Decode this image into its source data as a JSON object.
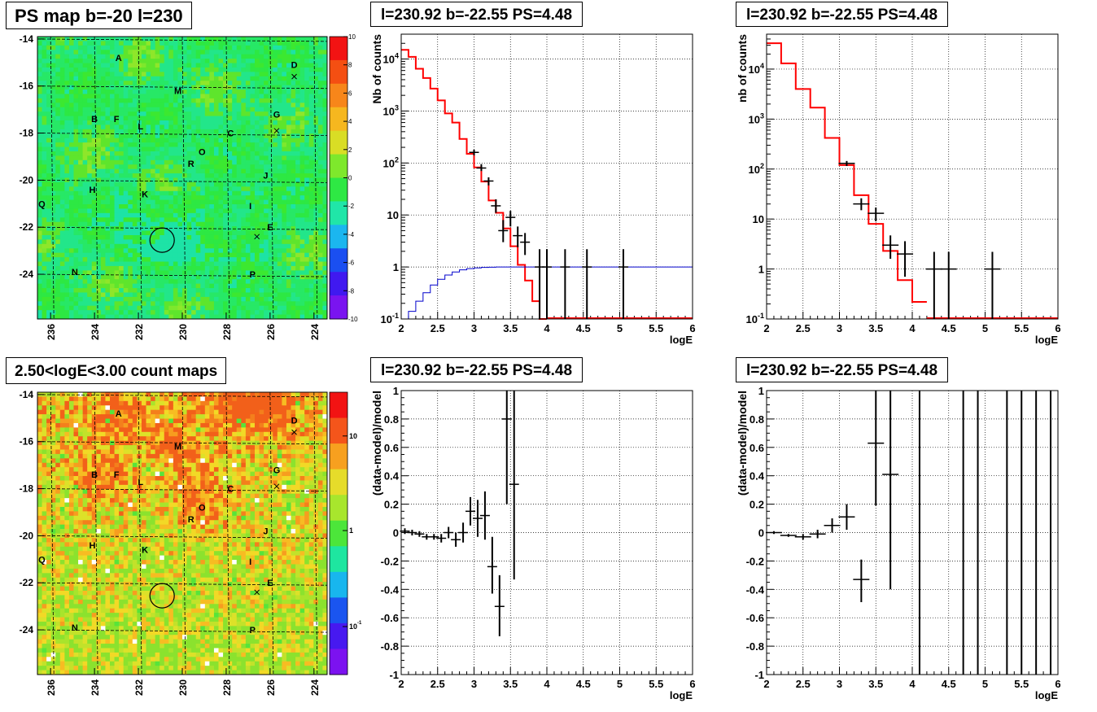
{
  "titles": {
    "ps_map": "PS map b=-20 l=230",
    "count_map": "2.50<logE<3.00 count maps",
    "spectrum_a": "l=230.92 b=-22.55 PS=4.48",
    "spectrum_b": "l=230.92 b=-22.55 PS=4.48",
    "resid_a": "l=230.92 b=-22.55 PS=4.48",
    "resid_b": "l=230.92 b=-22.55 PS=4.48"
  },
  "maps": {
    "x_ticks": [
      "236",
      "234",
      "232",
      "230",
      "228",
      "226",
      "224"
    ],
    "y_ticks": [
      "-14",
      "-16",
      "-18",
      "-20",
      "-22",
      "-24"
    ],
    "sources": [
      {
        "label": "A",
        "l": 232.9,
        "b": -14.8
      },
      {
        "label": "D",
        "l": 224.9,
        "b": -15.1
      },
      {
        "label": "M",
        "l": 230.2,
        "b": -16.2
      },
      {
        "label": "B",
        "l": 234.0,
        "b": -17.4
      },
      {
        "label": "F",
        "l": 233.0,
        "b": -17.4
      },
      {
        "label": "L",
        "l": 231.9,
        "b": -17.7
      },
      {
        "label": "G",
        "l": 225.7,
        "b": -17.2
      },
      {
        "label": "C",
        "l": 227.8,
        "b": -18.0
      },
      {
        "label": "O",
        "l": 229.1,
        "b": -18.8
      },
      {
        "label": "R",
        "l": 229.6,
        "b": -19.3
      },
      {
        "label": "J",
        "l": 226.2,
        "b": -19.8
      },
      {
        "label": "H",
        "l": 234.1,
        "b": -20.4
      },
      {
        "label": "K",
        "l": 231.7,
        "b": -20.6
      },
      {
        "label": "Q",
        "l": 236.4,
        "b": -21.0
      },
      {
        "label": "I",
        "l": 226.9,
        "b": -21.1
      },
      {
        "label": "E",
        "l": 226.0,
        "b": -22.0
      },
      {
        "label": "N",
        "l": 234.9,
        "b": -23.9
      },
      {
        "label": "P",
        "l": 226.8,
        "b": -24.0
      }
    ],
    "crosses": [
      {
        "l": 224.9,
        "b": -15.6
      },
      {
        "l": 225.7,
        "b": -17.9
      },
      {
        "l": 226.6,
        "b": -22.4
      }
    ],
    "circle": {
      "l": 230.92,
      "b": -22.55
    }
  },
  "ps_colorbar": {
    "ticks": [
      "10",
      "8",
      "6",
      "4",
      "2",
      "0",
      "-2",
      "-4",
      "-6",
      "-8",
      "-10"
    ],
    "colors": [
      "#f21313",
      "#f44f12",
      "#f7861a",
      "#f6b71f",
      "#d9dd25",
      "#7ee82c",
      "#2ee844",
      "#20e6a8",
      "#1bb6ef",
      "#1a4ff1",
      "#4019f0",
      "#7a14f0"
    ]
  },
  "count_colorbar": {
    "ticks": [
      "10",
      "1",
      "10-1"
    ],
    "colors": [
      "#f21313",
      "#f4551b",
      "#f7a01f",
      "#e6dc2a",
      "#a8e62d",
      "#4ce63a",
      "#1ee6a0",
      "#18b6ee",
      "#1a55f0",
      "#4719f0",
      "#7c12f0"
    ]
  },
  "chart_data": [
    {
      "type": "line",
      "title": "l=230.92 b=-22.55 PS=4.48",
      "xlabel": "logE",
      "ylabel": "Nb of counts",
      "xlim": [
        2,
        6
      ],
      "ylim": [
        0.1,
        30000
      ],
      "yscale": "log",
      "grid": true,
      "x_ticks": [
        "2",
        "2.5",
        "3",
        "3.5",
        "4",
        "4.5",
        "5",
        "5.5",
        "6"
      ],
      "y_ticks": [
        "10-1",
        "1",
        "10",
        "102",
        "103",
        "104"
      ],
      "series": [
        {
          "name": "",
          "color": "#ff0000",
          "kind": "step",
          "edges": [
            2.0,
            2.1,
            2.2,
            2.3,
            2.4,
            2.5,
            2.6,
            2.7,
            2.8,
            2.9,
            3.0,
            3.1,
            3.2,
            3.3,
            3.4,
            3.5,
            3.6,
            3.7,
            3.8,
            3.9,
            4.0
          ],
          "values": [
            15000,
            11000,
            6500,
            4300,
            2700,
            1600,
            900,
            600,
            290,
            150,
            82,
            44,
            19,
            11,
            5.5,
            2.5,
            1.1,
            0.55,
            0.22,
            0.1
          ]
        },
        {
          "name": "",
          "color": "#0000cc",
          "kind": "step",
          "edges": [
            2.0,
            2.1,
            2.2,
            2.3,
            2.4,
            2.5,
            2.6,
            2.7,
            2.8,
            2.9,
            3.0,
            3.1,
            3.2,
            3.3,
            3.4,
            3.5,
            6.0
          ],
          "values": [
            0.1,
            0.14,
            0.22,
            0.32,
            0.45,
            0.58,
            0.7,
            0.8,
            0.88,
            0.93,
            0.96,
            0.98,
            0.99,
            1.0,
            1.0,
            1.0
          ]
        },
        {
          "name": "",
          "color": "#000000",
          "kind": "errorbars",
          "points": [
            {
              "x": 3.0,
              "y": 160,
              "lo": 140,
              "hi": 180
            },
            {
              "x": 3.1,
              "y": 80,
              "lo": 70,
              "hi": 95
            },
            {
              "x": 3.2,
              "y": 45,
              "lo": 37,
              "hi": 53
            },
            {
              "x": 3.3,
              "y": 15,
              "lo": 11,
              "hi": 20
            },
            {
              "x": 3.4,
              "y": 5,
              "lo": 3,
              "hi": 8
            },
            {
              "x": 3.5,
              "y": 9,
              "lo": 6,
              "hi": 12
            },
            {
              "x": 3.6,
              "y": 4,
              "lo": 2.4,
              "hi": 6
            },
            {
              "x": 3.7,
              "y": 3,
              "lo": 1.7,
              "hi": 4.5
            },
            {
              "x": 3.9,
              "y": 1,
              "lo": 0.1,
              "hi": 2.2
            },
            {
              "x": 4.0,
              "y": 1,
              "lo": 0.1,
              "hi": 2.2
            },
            {
              "x": 4.25,
              "y": 1,
              "lo": 0.1,
              "hi": 2.2
            },
            {
              "x": 4.55,
              "y": 1,
              "lo": 0.1,
              "hi": 2.2
            },
            {
              "x": 5.05,
              "y": 1,
              "lo": 0.1,
              "hi": 2.2
            }
          ]
        }
      ]
    },
    {
      "type": "line",
      "title": "l=230.92 b=-22.55 PS=4.48",
      "xlabel": "logE",
      "ylabel": "nb of counts",
      "xlim": [
        2,
        6
      ],
      "ylim": [
        0.1,
        50000
      ],
      "yscale": "log",
      "grid": true,
      "x_ticks": [
        "2",
        "2.5",
        "3",
        "3.5",
        "4",
        "4.5",
        "5",
        "5.5",
        "6"
      ],
      "y_ticks": [
        "10-1",
        "1",
        "10",
        "102",
        "103",
        "104"
      ],
      "series": [
        {
          "name": "",
          "color": "#ff0000",
          "kind": "step",
          "edges": [
            2.0,
            2.2,
            2.4,
            2.6,
            2.8,
            3.0,
            3.2,
            3.4,
            3.6,
            3.8,
            4.0,
            4.2
          ],
          "values": [
            33000,
            13000,
            4000,
            1700,
            420,
            120,
            30,
            8,
            2.3,
            0.6,
            0.22
          ]
        },
        {
          "name": "",
          "color": "#000000",
          "kind": "errorbars",
          "points": [
            {
              "x": 3.1,
              "y": 130,
              "lo": 115,
              "hi": 145
            },
            {
              "x": 3.3,
              "y": 20,
              "lo": 15,
              "hi": 26
            },
            {
              "x": 3.5,
              "y": 13,
              "lo": 9,
              "hi": 17
            },
            {
              "x": 3.7,
              "y": 3,
              "lo": 1.6,
              "hi": 4.7
            },
            {
              "x": 3.9,
              "y": 2,
              "lo": 0.7,
              "hi": 3.6
            },
            {
              "x": 4.3,
              "y": 1,
              "lo": 0.1,
              "hi": 2.2
            },
            {
              "x": 4.5,
              "y": 1,
              "lo": 0.1,
              "hi": 2.2
            },
            {
              "x": 5.1,
              "y": 1,
              "lo": 0.1,
              "hi": 2.2
            }
          ]
        }
      ]
    },
    {
      "type": "scatter",
      "title": "l=230.92 b=-22.55 PS=4.48",
      "xlabel": "logE",
      "ylabel": "(data-model)/model",
      "xlim": [
        2,
        6
      ],
      "ylim": [
        -1,
        1
      ],
      "grid": true,
      "x_ticks": [
        "2",
        "2.5",
        "3",
        "3.5",
        "4",
        "4.5",
        "5",
        "5.5",
        "6"
      ],
      "y_ticks": [
        "-1",
        "-0.8",
        "-0.6",
        "-0.4",
        "-0.2",
        "0",
        "0.2",
        "0.4",
        "0.6",
        "0.8",
        "1"
      ],
      "series": [
        {
          "name": "",
          "color": "#000000",
          "kind": "errorbars",
          "points": [
            {
              "x": 2.05,
              "y": 0.01,
              "lo": -0.01,
              "hi": 0.03
            },
            {
              "x": 2.15,
              "y": 0.0,
              "lo": -0.02,
              "hi": 0.02
            },
            {
              "x": 2.25,
              "y": -0.01,
              "lo": -0.03,
              "hi": 0.01
            },
            {
              "x": 2.35,
              "y": -0.03,
              "lo": -0.05,
              "hi": -0.01
            },
            {
              "x": 2.45,
              "y": -0.03,
              "lo": -0.05,
              "hi": -0.01
            },
            {
              "x": 2.55,
              "y": -0.04,
              "lo": -0.07,
              "hi": -0.01
            },
            {
              "x": 2.65,
              "y": 0.0,
              "lo": -0.04,
              "hi": 0.04
            },
            {
              "x": 2.75,
              "y": -0.05,
              "lo": -0.1,
              "hi": 0.0
            },
            {
              "x": 2.85,
              "y": 0.0,
              "lo": -0.07,
              "hi": 0.07
            },
            {
              "x": 2.95,
              "y": 0.15,
              "lo": 0.05,
              "hi": 0.25
            },
            {
              "x": 3.05,
              "y": 0.1,
              "lo": -0.03,
              "hi": 0.23
            },
            {
              "x": 3.15,
              "y": 0.12,
              "lo": -0.05,
              "hi": 0.29
            },
            {
              "x": 3.25,
              "y": -0.24,
              "lo": -0.43,
              "hi": -0.03
            },
            {
              "x": 3.35,
              "y": -0.52,
              "lo": -0.73,
              "hi": -0.3
            },
            {
              "x": 3.45,
              "y": 0.8,
              "lo": 0.2,
              "hi": 1.0
            },
            {
              "x": 3.55,
              "y": 0.34,
              "lo": -0.33,
              "hi": 1.0
            }
          ]
        }
      ]
    },
    {
      "type": "scatter",
      "title": "l=230.92 b=-22.55 PS=4.48",
      "xlabel": "logE",
      "ylabel": "(data-model)/model",
      "xlim": [
        2,
        6
      ],
      "ylim": [
        -1,
        1
      ],
      "grid": true,
      "x_ticks": [
        "2",
        "2.5",
        "3",
        "3.5",
        "4",
        "4.5",
        "5",
        "5.5",
        "6"
      ],
      "y_ticks": [
        "-1",
        "-0.8",
        "-0.6",
        "-0.4",
        "-0.2",
        "0",
        "0.2",
        "0.4",
        "0.6",
        "0.8",
        "1"
      ],
      "series": [
        {
          "name": "",
          "color": "#000000",
          "kind": "errorbars",
          "points": [
            {
              "x": 2.1,
              "y": 0.0,
              "lo": -0.01,
              "hi": 0.01
            },
            {
              "x": 2.3,
              "y": -0.02,
              "lo": -0.03,
              "hi": -0.01
            },
            {
              "x": 2.5,
              "y": -0.03,
              "lo": -0.05,
              "hi": -0.01
            },
            {
              "x": 2.7,
              "y": -0.01,
              "lo": -0.04,
              "hi": 0.02
            },
            {
              "x": 2.9,
              "y": 0.05,
              "lo": 0.0,
              "hi": 0.1
            },
            {
              "x": 3.1,
              "y": 0.11,
              "lo": 0.02,
              "hi": 0.2
            },
            {
              "x": 3.3,
              "y": -0.33,
              "lo": -0.49,
              "hi": -0.19
            },
            {
              "x": 3.5,
              "y": 0.63,
              "lo": 0.19,
              "hi": 1.0
            },
            {
              "x": 3.7,
              "y": 0.41,
              "lo": -0.4,
              "hi": 1.0
            },
            {
              "x": 4.1,
              "y": -1.0,
              "lo": -1.0,
              "hi": 1.0
            },
            {
              "x": 4.7,
              "y": -1.0,
              "lo": -1.0,
              "hi": 1.0
            },
            {
              "x": 4.9,
              "y": -1.0,
              "lo": -1.0,
              "hi": 1.0
            },
            {
              "x": 5.3,
              "y": -1.0,
              "lo": -1.0,
              "hi": 1.0
            },
            {
              "x": 5.5,
              "y": -1.0,
              "lo": -1.0,
              "hi": 1.0
            },
            {
              "x": 5.7,
              "y": -1.0,
              "lo": -1.0,
              "hi": 1.0
            },
            {
              "x": 5.9,
              "y": -1.0,
              "lo": -1.0,
              "hi": 1.0
            }
          ]
        }
      ]
    }
  ]
}
